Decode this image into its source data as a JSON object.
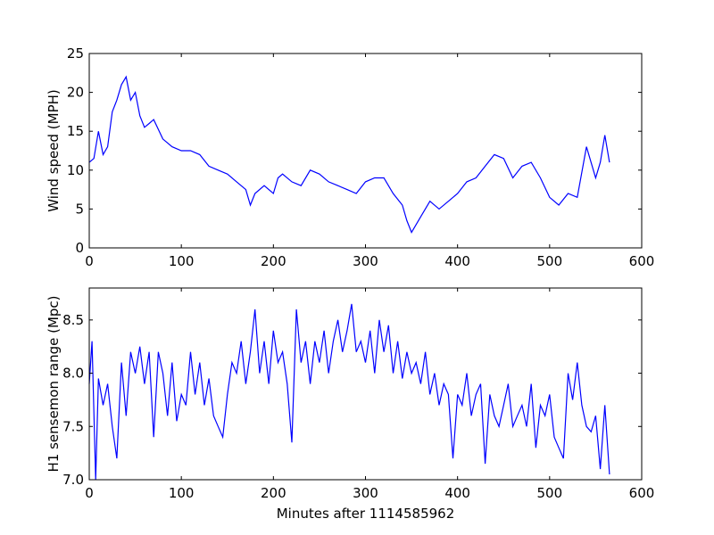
{
  "chart_data": [
    {
      "type": "line",
      "ylabel": "Wind speed (MPH)",
      "color": "#0000ff",
      "x": [
        0,
        5,
        10,
        15,
        20,
        25,
        30,
        35,
        40,
        45,
        50,
        55,
        60,
        65,
        70,
        80,
        90,
        100,
        110,
        120,
        130,
        140,
        150,
        160,
        170,
        175,
        180,
        190,
        200,
        205,
        210,
        220,
        230,
        240,
        250,
        260,
        270,
        280,
        290,
        300,
        310,
        320,
        330,
        340,
        345,
        350,
        360,
        370,
        380,
        390,
        400,
        410,
        420,
        430,
        440,
        450,
        460,
        470,
        480,
        490,
        500,
        510,
        520,
        530,
        540,
        550,
        555,
        560,
        565
      ],
      "values": [
        11,
        11.5,
        15,
        12,
        13,
        17.5,
        19,
        21,
        22,
        19,
        20,
        17,
        15.5,
        16,
        16.5,
        14,
        13,
        12.5,
        12.5,
        12,
        10.5,
        10,
        9.5,
        8.5,
        7.5,
        5.5,
        7,
        8,
        7,
        9,
        9.5,
        8.5,
        8,
        10,
        9.5,
        8.5,
        8,
        7.5,
        7,
        8.5,
        9,
        9,
        7,
        5.5,
        3.5,
        2,
        4,
        6,
        5,
        6,
        7,
        8.5,
        9,
        10.5,
        12,
        11.5,
        9,
        10.5,
        11,
        9,
        6.5,
        5.5,
        7,
        6.5,
        13,
        9,
        11,
        14.5,
        11
      ],
      "xlim": [
        0,
        600
      ],
      "xticks": [
        0,
        100,
        200,
        300,
        400,
        500,
        600
      ],
      "ylim": [
        0,
        25
      ],
      "yticks": [
        0,
        5,
        10,
        15,
        20,
        25
      ]
    },
    {
      "type": "line",
      "xlabel": "Minutes after 1114585962",
      "ylabel": "H1 sensemon range (Mpc)",
      "color": "#0000ff",
      "x": [
        0,
        3,
        7,
        10,
        15,
        20,
        25,
        30,
        35,
        40,
        45,
        50,
        55,
        60,
        65,
        70,
        75,
        80,
        85,
        90,
        95,
        100,
        105,
        110,
        115,
        120,
        125,
        130,
        135,
        140,
        145,
        150,
        155,
        160,
        165,
        170,
        175,
        180,
        185,
        190,
        195,
        200,
        205,
        210,
        215,
        220,
        225,
        230,
        235,
        240,
        245,
        250,
        255,
        260,
        265,
        270,
        275,
        280,
        285,
        290,
        295,
        300,
        305,
        310,
        315,
        320,
        325,
        330,
        335,
        340,
        345,
        350,
        355,
        360,
        365,
        370,
        375,
        380,
        385,
        390,
        395,
        400,
        405,
        410,
        415,
        420,
        425,
        430,
        435,
        440,
        445,
        450,
        455,
        460,
        465,
        470,
        475,
        480,
        485,
        490,
        495,
        500,
        505,
        510,
        515,
        520,
        525,
        530,
        535,
        540,
        545,
        550,
        555,
        560,
        565
      ],
      "values": [
        7.9,
        8.3,
        7.0,
        7.95,
        7.7,
        7.9,
        7.5,
        7.2,
        8.1,
        7.6,
        8.2,
        8.0,
        8.25,
        7.9,
        8.2,
        7.4,
        8.2,
        8.0,
        7.6,
        8.1,
        7.55,
        7.8,
        7.7,
        8.2,
        7.8,
        8.1,
        7.7,
        7.95,
        7.6,
        7.5,
        7.4,
        7.8,
        8.1,
        8.0,
        8.3,
        7.9,
        8.2,
        8.6,
        8.0,
        8.3,
        7.9,
        8.4,
        8.1,
        8.2,
        7.9,
        7.35,
        8.6,
        8.1,
        8.3,
        7.9,
        8.3,
        8.1,
        8.4,
        8.0,
        8.3,
        8.5,
        8.2,
        8.4,
        8.65,
        8.2,
        8.3,
        8.1,
        8.4,
        8.0,
        8.5,
        8.2,
        8.45,
        8.0,
        8.3,
        7.95,
        8.2,
        8.0,
        8.1,
        7.9,
        8.2,
        7.8,
        8.0,
        7.7,
        7.9,
        7.8,
        7.2,
        7.8,
        7.7,
        8.0,
        7.6,
        7.8,
        7.9,
        7.15,
        7.8,
        7.6,
        7.5,
        7.7,
        7.9,
        7.5,
        7.6,
        7.7,
        7.5,
        7.9,
        7.3,
        7.7,
        7.6,
        7.8,
        7.4,
        7.3,
        7.2,
        8.0,
        7.75,
        8.1,
        7.7,
        7.5,
        7.45,
        7.6,
        7.1,
        7.7,
        7.05
      ],
      "xlim": [
        0,
        600
      ],
      "xticks": [
        0,
        100,
        200,
        300,
        400,
        500,
        600
      ],
      "ylim": [
        7.0,
        8.8
      ],
      "yticks": [
        {
          "value": 7,
          "label": "7.0"
        },
        7.5,
        {
          "value": 8,
          "label": "8.0"
        },
        8.5
      ]
    }
  ]
}
